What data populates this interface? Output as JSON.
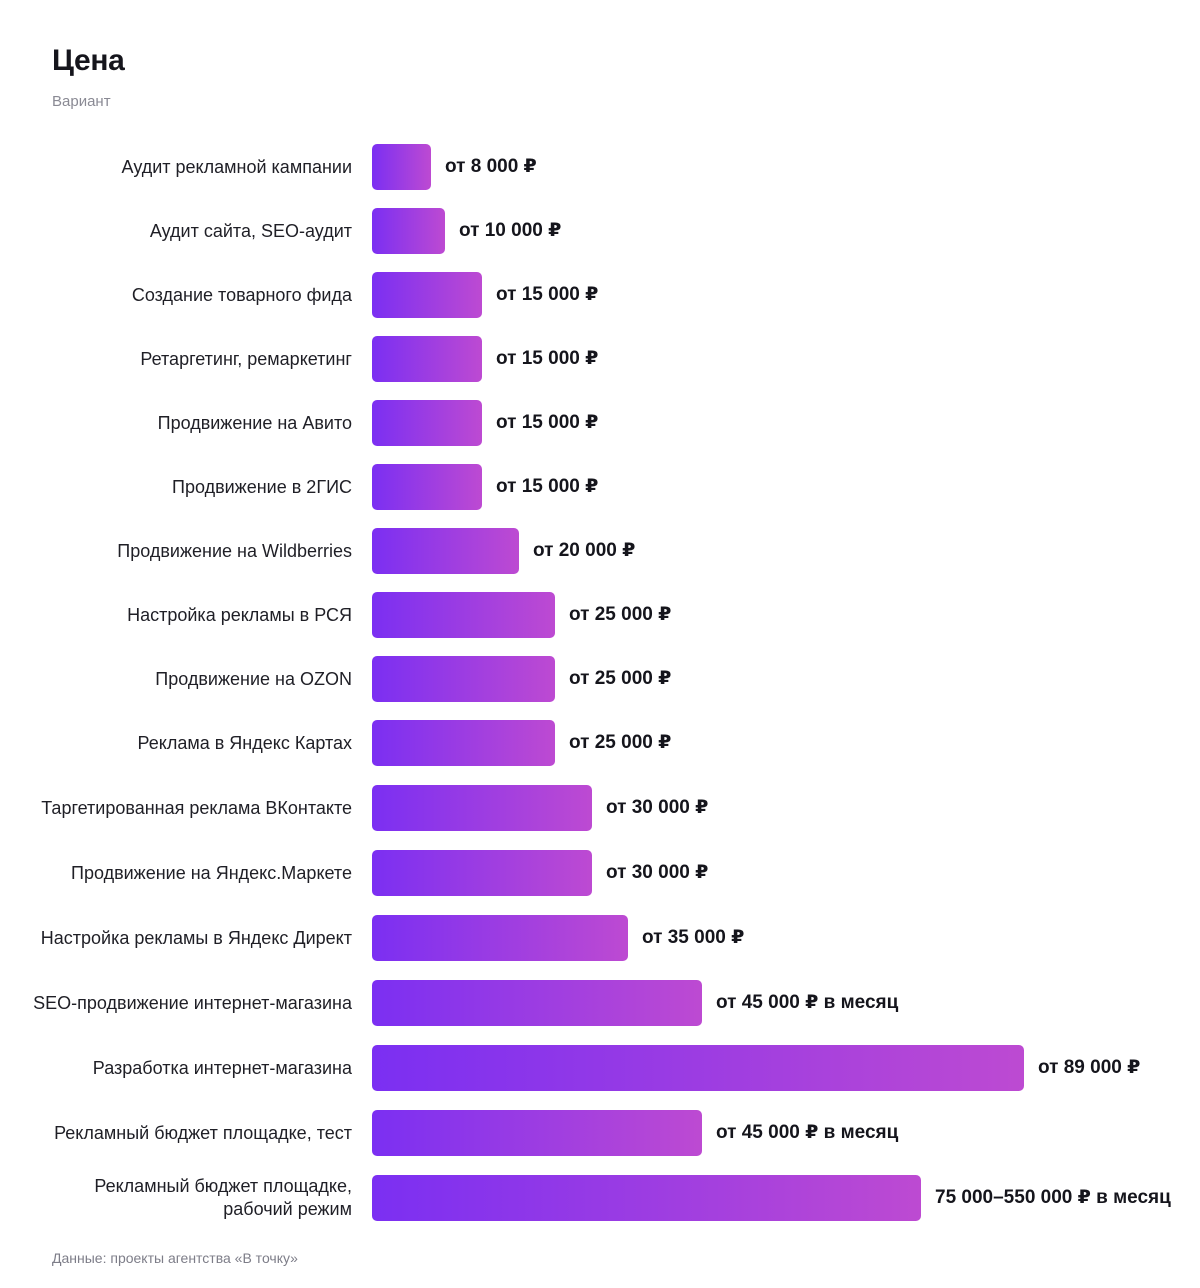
{
  "chart_data": {
    "type": "bar",
    "orientation": "horizontal",
    "title": "Цена",
    "subtitle": "Вариант",
    "source": "Данные: проекты агентства «В точку»",
    "bar_gradient": [
      "#7b2ff2",
      "#bd4ad2"
    ],
    "xlim": [
      0,
      89000
    ],
    "categories": [
      "Аудит рекламной кампании",
      "Аудит сайта, SEO-аудит",
      "Создание товарного фида",
      "Ретаргетинг, ремаркетинг",
      "Продвижение на Авито",
      "Продвижение в 2ГИС",
      "Продвижение на Wildberries",
      "Настройка рекламы в РСЯ",
      "Продвижение на OZON",
      "Реклама в Яндекс Картах",
      "Таргетированная реклама ВКонтакте",
      "Продвижение на Яндекс.Маркете",
      "Настройка рекламы в Яндекс Директ",
      "SEO-продвижение интернет-магазина",
      "Разработка интернет-магазина",
      "Рекламный бюджет площадке, тест",
      "Рекламный бюджет площадке, рабочий режим"
    ],
    "values": [
      8000,
      10000,
      15000,
      15000,
      15000,
      15000,
      20000,
      25000,
      25000,
      25000,
      30000,
      30000,
      35000,
      45000,
      89000,
      45000,
      75000
    ],
    "value_labels": [
      "от 8 000 ₽",
      "от 10 000 ₽",
      "от 15 000 ₽",
      "от 15 000 ₽",
      "от 15 000 ₽",
      "от 15 000 ₽",
      "от 20 000 ₽",
      "от 25 000 ₽",
      "от 25 000 ₽",
      "от 25 000 ₽",
      "от 30 000 ₽",
      "от 30 000 ₽",
      "от 35 000 ₽",
      "от 45 000 ₽ в месяц",
      "от 89 000 ₽",
      "от 45 000 ₽ в месяц",
      "75 000–550 000 ₽ в месяц"
    ]
  }
}
